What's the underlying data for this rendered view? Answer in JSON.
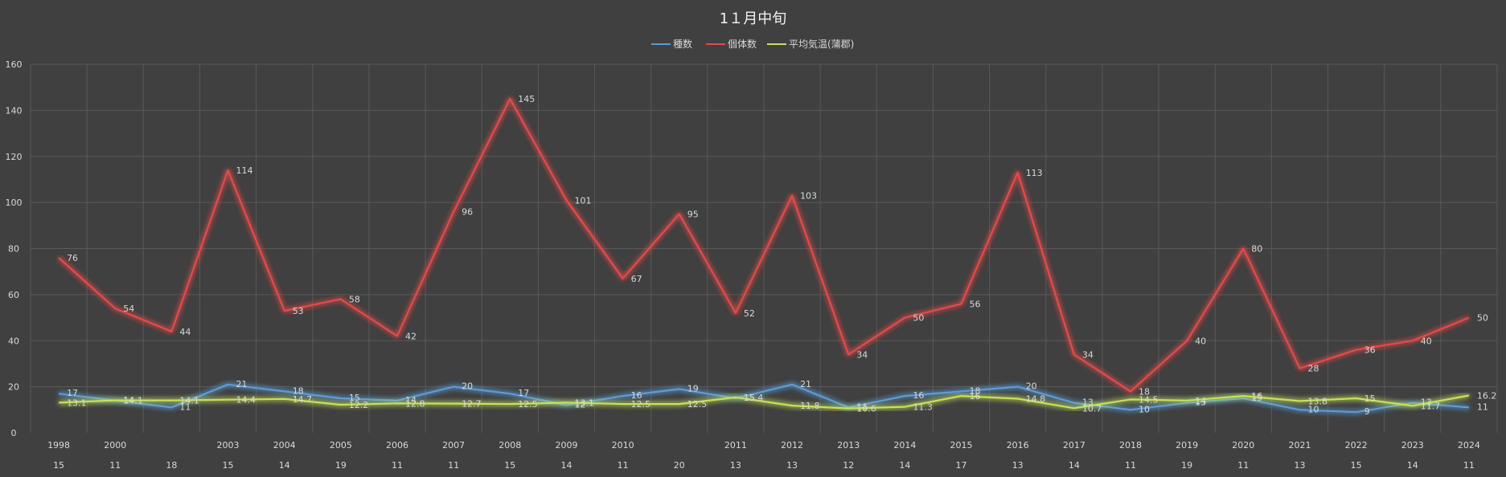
{
  "colors": {
    "background": "#404040",
    "gridline": "#595959",
    "text": "#d9d9d9",
    "title": "#f2f2f2",
    "species": "#5b9bd5",
    "individuals": "#e14b4b",
    "temperature": "#c5e05a"
  },
  "chart_data": {
    "type": "line",
    "title": "1１月中旬",
    "xlabel": "",
    "ylabel": "",
    "ylim": [
      0,
      160
    ],
    "yticks": [
      "0",
      "20",
      "40",
      "60",
      "80",
      "100",
      "120",
      "140",
      "160"
    ],
    "grid": true,
    "legend_position": "top-center",
    "categories": [
      "1998",
      "2000",
      "",
      "2003",
      "2004",
      "2005",
      "2006",
      "2007",
      "2008",
      "2009",
      "2010",
      "",
      "2011",
      "2012",
      "2013",
      "2014",
      "2015",
      "2016",
      "2017",
      "2018",
      "2019",
      "2020",
      "2021",
      "2022",
      "2023",
      "2024"
    ],
    "category_counts": [
      "15",
      "11",
      "18",
      "15",
      "14",
      "19",
      "11",
      "11",
      "15",
      "14",
      "11",
      "20",
      "13",
      "13",
      "12",
      "14",
      "17",
      "13",
      "14",
      "11",
      "19",
      "11",
      "13",
      "15",
      "14",
      "11"
    ],
    "series": [
      {
        "name": "種数",
        "color_key": "species",
        "values": [
          17,
          14,
          11,
          21,
          18,
          15,
          14,
          20,
          17,
          12,
          16,
          19,
          15,
          21,
          11,
          16,
          18,
          20,
          13,
          10,
          13,
          15,
          10,
          9,
          13,
          11
        ],
        "labels": [
          "17",
          "14",
          "11",
          "21",
          "18",
          "15",
          "14",
          "20",
          "17",
          "12",
          "16",
          "19",
          "15",
          "21",
          "11",
          "16",
          "18",
          "20",
          "13",
          "10",
          "13",
          "15",
          "10",
          "9",
          "13",
          "11"
        ]
      },
      {
        "name": "個体数",
        "color_key": "individuals",
        "values": [
          76,
          54,
          44,
          114,
          53,
          58,
          42,
          96,
          145,
          101,
          67,
          95,
          52,
          103,
          34,
          50,
          56,
          113,
          34,
          18,
          40,
          80,
          28,
          36,
          40,
          50
        ],
        "labels": [
          "76",
          "54",
          "44",
          "114",
          "53",
          "58",
          "42",
          "96",
          "145",
          "101",
          "67",
          "95",
          "52",
          "103",
          "34",
          "50",
          "56",
          "113",
          "34",
          "18",
          "40",
          "80",
          "28",
          "36",
          "40",
          "50"
        ]
      },
      {
        "name": "平均気温(蒲郡)",
        "color_key": "temperature",
        "values": [
          13.1,
          14.1,
          14.1,
          14.4,
          14.7,
          12.2,
          12.8,
          12.7,
          12.5,
          13.1,
          12.5,
          12.5,
          15.4,
          11.8,
          10.6,
          11.3,
          16,
          14.8,
          10.7,
          14.5,
          14,
          16,
          13.8,
          15,
          11.7,
          16.2
        ],
        "labels": [
          "13.1",
          "14.1",
          "14.1",
          "14.4",
          "14.7",
          "12.2",
          "12.8",
          "12.7",
          "12.5",
          "13.1",
          "12.5",
          "12.5",
          "15.4",
          "11.8",
          "10.6",
          "11.3",
          "16",
          "14.8",
          "10.7",
          "14.5",
          "14",
          "16",
          "13.8",
          "15",
          "11.7",
          "16.2"
        ]
      }
    ]
  }
}
